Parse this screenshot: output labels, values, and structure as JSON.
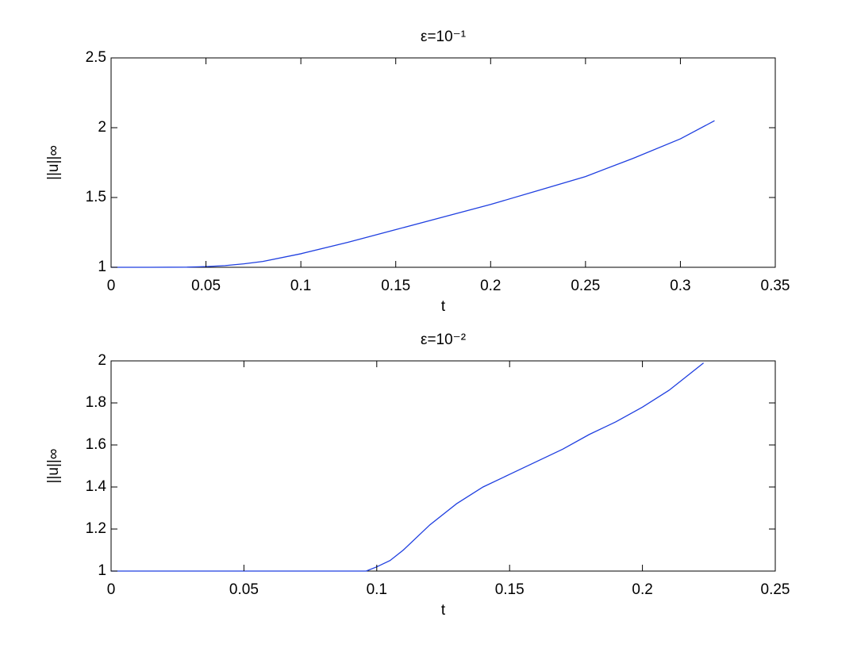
{
  "chart_data": [
    {
      "type": "line",
      "title": "ε=10⁻¹",
      "xlabel": "t",
      "ylabel": "||u||∞",
      "x": [
        0,
        0.02,
        0.04,
        0.05,
        0.06,
        0.07,
        0.08,
        0.1,
        0.125,
        0.15,
        0.175,
        0.2,
        0.225,
        0.25,
        0.275,
        0.3,
        0.318
      ],
      "series": [
        {
          "color": "#1f3fe0",
          "values": [
            1,
            1,
            1.001,
            1.005,
            1.012,
            1.025,
            1.042,
            1.097,
            1.18,
            1.27,
            1.36,
            1.45,
            1.55,
            1.65,
            1.78,
            1.92,
            2.05
          ]
        }
      ],
      "xlim": [
        0,
        0.35
      ],
      "xticks": [
        0,
        0.05,
        0.1,
        0.15,
        0.2,
        0.25,
        0.3,
        0.35
      ],
      "ylim": [
        1,
        2.5
      ],
      "yticks": [
        1,
        1.5,
        2,
        2.5
      ]
    },
    {
      "type": "line",
      "title": "ε=10⁻²",
      "xlabel": "t",
      "ylabel": "||u||∞",
      "x": [
        0,
        0.05,
        0.096,
        0.1,
        0.105,
        0.11,
        0.12,
        0.13,
        0.14,
        0.15,
        0.16,
        0.17,
        0.18,
        0.19,
        0.2,
        0.21,
        0.215,
        0.223
      ],
      "series": [
        {
          "color": "#1f3fe0",
          "values": [
            1,
            1,
            1,
            1.02,
            1.05,
            1.1,
            1.22,
            1.32,
            1.4,
            1.46,
            1.52,
            1.58,
            1.65,
            1.71,
            1.78,
            1.86,
            1.91,
            1.99
          ]
        }
      ],
      "xlim": [
        0,
        0.25
      ],
      "xticks": [
        0,
        0.05,
        0.1,
        0.15,
        0.2,
        0.25
      ],
      "ylim": [
        1,
        2
      ],
      "yticks": [
        1,
        1.2,
        1.4,
        1.6,
        1.8,
        2
      ]
    }
  ]
}
